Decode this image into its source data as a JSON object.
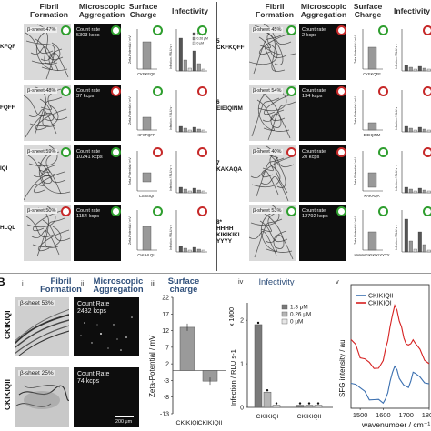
{
  "panel_a": {
    "headers": {
      "fibril": "Fibril Formation",
      "aggregation": "Microscopic Aggregation",
      "charge": "Surface Charge",
      "infectivity": "Infectivity"
    },
    "rows_left": [
      {
        "pep_label": "KFQF",
        "beta": "β-sheet 47%",
        "rate_label": "Count rate",
        "rate_value": "5303 kcps",
        "tem_ring": "green",
        "agg_ring": "green",
        "charge_ring": "green",
        "inf_ring": "green",
        "zeta_xtick": "CKFKFQF"
      },
      {
        "pep_label": "FQFF",
        "beta": "β-sheet 48%",
        "rate_label": "Count rate",
        "rate_value": "37 kcps",
        "tem_ring": "green",
        "agg_ring": "red",
        "charge_ring": "green",
        "inf_ring": "red",
        "zeta_xtick": "KFKFQFF"
      },
      {
        "pep_label": "IQI",
        "beta": "β-sheet 59%",
        "rate_label": "Count rate",
        "rate_value": "10241 kcps",
        "tem_ring": "green",
        "agg_ring": "green",
        "charge_ring": "red",
        "inf_ring": "red",
        "zeta_xtick": "CSIISIQI"
      },
      {
        "pep_label": "HLQL",
        "beta": "β-sheet 50%",
        "rate_label": "Count rate",
        "rate_value": "1154 kcps",
        "tem_ring": "red",
        "agg_ring": "green",
        "charge_ring": "green",
        "inf_ring": "red",
        "zeta_xtick": "CHLHLQL"
      }
    ],
    "rows_right": [
      {
        "num": "5",
        "name": "CKFKQFF",
        "beta": "β-sheet 45%",
        "rate_label": "Count rate",
        "rate_value": "2 kcps",
        "tem_ring": "green",
        "agg_ring": "red",
        "charge_ring": "green",
        "inf_ring": "red",
        "zeta_xtick": "CKFKQFF",
        "scale": "1 μm"
      },
      {
        "num": "6",
        "name": "EIEIQINM",
        "beta": "β-sheet 54%",
        "rate_label": "Count rate",
        "rate_value": "134 kcps",
        "tem_ring": "green",
        "agg_ring": "red",
        "charge_ring": "red",
        "inf_ring": "red",
        "zeta_xtick": "EIEIQINM",
        "scale": ""
      },
      {
        "num": "7",
        "name": "KAKAQA",
        "beta": "β-sheet 40%",
        "rate_label": "Count rate",
        "rate_value": "20 kcps",
        "tem_ring": "red",
        "agg_ring": "red",
        "charge_ring": "green",
        "inf_ring": "red",
        "zeta_xtick": "KAKAQA",
        "scale": ""
      },
      {
        "num": "8*",
        "name": "HHHH\nKIKIKIKI\nYYYY",
        "beta": "β-sheet 53%",
        "rate_label": "Count rate",
        "rate_value": "12792 kcps",
        "tem_ring": "green",
        "agg_ring": "green",
        "charge_ring": "green",
        "inf_ring": "green",
        "zeta_xtick": "HHHHKIKIKIKIYYYY",
        "scale": ""
      }
    ],
    "y_axes": {
      "zeta": "Zeta-Potential / mV",
      "infection": "Infection / RLU s⁻¹"
    },
    "legend_conc": [
      "1.3 μM",
      "0.26 μM",
      "0 μM"
    ],
    "scale_bar": "1 μm"
  },
  "panel_b": {
    "letter": "B",
    "sections": [
      {
        "roman": "i",
        "title": "Fibril Formation"
      },
      {
        "roman": "ii",
        "title": "Microscopic Aggregation"
      },
      {
        "roman": "iii",
        "title": "Surface charge"
      },
      {
        "roman": "iv",
        "title": "Infectivity"
      },
      {
        "roman": "v",
        "title": ""
      }
    ],
    "rows": [
      {
        "pep": "CKIKIQI",
        "beta": "β-sheet 53%",
        "rate_label": "Count Rate",
        "rate_value": "2432 kcps"
      },
      {
        "pep": "CKIKIQII",
        "beta": "β-sheet 25%",
        "rate_label": "Count Rate",
        "rate_value": "74 kcps",
        "scale": "200 μm"
      }
    ],
    "zeta_axis": {
      "label": "Zeta-Potential / mV",
      "ticks": [
        "22",
        "17",
        "12",
        "7",
        "2",
        "-3",
        "-8",
        "-13"
      ]
    },
    "infection_axis": {
      "label": "Infection / RLU s-1",
      "multiplier": "x 1000",
      "ticks": [
        "0",
        "1",
        "2"
      ]
    },
    "infection_legend": [
      "1.3 μM",
      "0.26 μM",
      "0 μM"
    ],
    "sfg_axis": {
      "ylabel": "SFG intensity / au",
      "xlabel": "wavenumber / cm⁻¹",
      "xticks": [
        "1500",
        "1600",
        "1700",
        "1800"
      ]
    },
    "sfg_legend": [
      "CKIKIQII",
      "CKIKIQI"
    ],
    "sfg_legend_colors": [
      "#3a6fb0",
      "#d62020"
    ]
  },
  "chart_data": [
    {
      "type": "bar",
      "title": "Surface charge",
      "ylabel": "Zeta-Potential / mV",
      "categories": [
        "CKIKIQI",
        "CKIKIQII"
      ],
      "values": [
        13,
        -3.2
      ],
      "ylim": [
        -13,
        22
      ]
    },
    {
      "type": "bar",
      "title": "Infectivity",
      "ylabel": "Infection / RLU s-1 x 1000",
      "categories": [
        "CKIKIQI",
        "CKIKIQII"
      ],
      "series": [
        {
          "name": "1.3 μM",
          "values": [
            1.9,
            0.05
          ]
        },
        {
          "name": "0.26 μM",
          "values": [
            0.35,
            0.05
          ]
        },
        {
          "name": "0 μM",
          "values": [
            0.05,
            0.05
          ]
        }
      ],
      "ylim": [
        0,
        2.4
      ]
    },
    {
      "type": "line",
      "title": "",
      "xlabel": "wavenumber / cm⁻¹",
      "ylabel": "SFG intensity / au",
      "xlim": [
        1460,
        1800
      ],
      "series": [
        {
          "name": "CKIKIQII",
          "color": "#3a6fb0",
          "x": [
            1460,
            1480,
            1500,
            1520,
            1540,
            1560,
            1580,
            1600,
            1610,
            1620,
            1630,
            1640,
            1650,
            1660,
            1670,
            1680,
            1690,
            1700,
            1710,
            1720,
            1730,
            1740,
            1760,
            1780,
            1800
          ],
          "y": [
            0.22,
            0.2,
            0.16,
            0.12,
            0.08,
            0.07,
            0.06,
            0.06,
            0.08,
            0.12,
            0.2,
            0.3,
            0.34,
            0.3,
            0.26,
            0.22,
            0.18,
            0.16,
            0.18,
            0.22,
            0.28,
            0.3,
            0.26,
            0.2,
            0.18
          ]
        },
        {
          "name": "CKIKIQI",
          "color": "#d62020",
          "x": [
            1460,
            1480,
            1500,
            1520,
            1540,
            1560,
            1580,
            1600,
            1610,
            1620,
            1630,
            1640,
            1650,
            1660,
            1670,
            1680,
            1690,
            1700,
            1710,
            1720,
            1730,
            1740,
            1760,
            1780,
            1800
          ],
          "y": [
            0.55,
            0.5,
            0.42,
            0.4,
            0.36,
            0.34,
            0.33,
            0.38,
            0.46,
            0.56,
            0.66,
            0.74,
            0.85,
            0.8,
            0.7,
            0.64,
            0.58,
            0.52,
            0.5,
            0.54,
            0.56,
            0.52,
            0.46,
            0.4,
            0.36
          ]
        }
      ]
    }
  ]
}
